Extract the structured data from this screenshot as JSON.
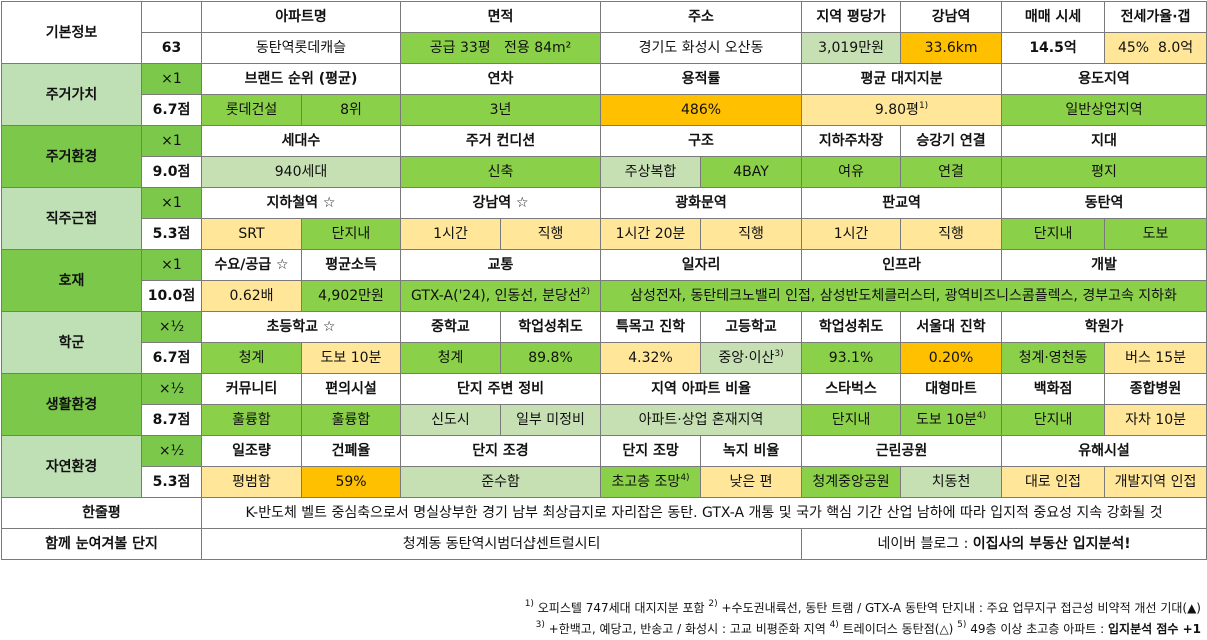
{
  "basic": {
    "label": "기본정보",
    "number": "63",
    "h_name": "아파트명",
    "name": "동탄역롯데캐슬",
    "h_area": "면적",
    "area_supply": "공급 33평",
    "area_exclusive": "전용 84m²",
    "h_addr": "주소",
    "addr": "경기도 화성시 오산동",
    "h_price_py": "지역 평당가",
    "price_py": "3,019만원",
    "h_gangnam": "강남역",
    "gangnam": "33.6km",
    "h_sale": "매매 시세",
    "sale": "14.5억",
    "h_jeonse": "전세가율·갭",
    "jeonse_rate": "45%",
    "jeonse_gap": "8.0억"
  },
  "sections": {
    "s1": {
      "name": "주거가치",
      "mult": "×1",
      "score": "6.7점"
    },
    "s2": {
      "name": "주거환경",
      "mult": "×1",
      "score": "9.0점"
    },
    "s3": {
      "name": "직주근접",
      "mult": "×1",
      "score": "5.3점"
    },
    "s4": {
      "name": "호재",
      "mult": "×1",
      "score": "10.0점"
    },
    "s5": {
      "name": "학군",
      "mult": "×½",
      "score": "6.7점"
    },
    "s6": {
      "name": "생활환경",
      "mult": "×½",
      "score": "8.7점"
    },
    "s7": {
      "name": "자연환경",
      "mult": "×½",
      "score": "5.3점"
    }
  },
  "r1": {
    "h_brand": "브랜드 순위 (평균)",
    "brand": "롯데건설",
    "brand_rank": "8위",
    "h_age": "연차",
    "age": "3년",
    "h_far": "용적률",
    "far": "486%",
    "h_land": "평균 대지지분",
    "land": "9.80평",
    "land_note": "1)",
    "h_zone": "용도지역",
    "zone": "일반상업지역"
  },
  "r2": {
    "h_households": "세대수",
    "households": "940세대",
    "h_condition": "주거 컨디션",
    "condition": "신축",
    "h_structure": "구조",
    "structure_a": "주상복합",
    "structure_b": "4BAY",
    "h_parking": "지하주차장",
    "parking": "여유",
    "h_elevator": "승강기 연결",
    "elevator": "연결",
    "h_terrain": "지대",
    "terrain": "평지"
  },
  "r3": {
    "h_subway": "지하철역 ☆",
    "subway_a": "SRT",
    "subway_b": "단지내",
    "h_gangnam": "강남역 ☆",
    "gangnam_a": "1시간",
    "gangnam_b": "직행",
    "h_gwanghwamun": "광화문역",
    "gwanghwamun_a": "1시간 20분",
    "gwanghwamun_b": "직행",
    "h_pangyo": "판교역",
    "pangyo_a": "1시간",
    "pangyo_b": "직행",
    "h_dongtan": "동탄역",
    "dongtan_a": "단지내",
    "dongtan_b": "도보"
  },
  "r4": {
    "h_supply": "수요/공급 ☆",
    "supply": "0.62배",
    "h_income": "평균소득",
    "income": "4,902만원",
    "h_traffic": "교통",
    "traffic": "GTX-A('24), 인동선, 분당선",
    "traffic_note": "2)",
    "h_jobs": "일자리",
    "h_infra": "인프라",
    "h_dev": "개발",
    "jobs_infra_dev": "삼성전자, 동탄테크노밸리 인접, 삼성반도체클러스터, 광역비즈니스콤플렉스, 경부고속 지하화"
  },
  "r5": {
    "h_elem": "초등학교 ☆",
    "elem_a": "청계",
    "elem_b": "도보 10분",
    "h_middle": "중학교",
    "middle": "청계",
    "h_middle_ach": "학업성취도",
    "middle_ach": "89.8%",
    "h_special": "특목고 진학",
    "special": "4.32%",
    "h_high": "고등학교",
    "high": "중앙·이산",
    "high_note": "3)",
    "h_high_ach": "학업성취도",
    "high_ach": "93.1%",
    "h_snu": "서울대 진학",
    "snu": "0.20%",
    "h_academy": "학원가",
    "academy_a": "청계·영천동",
    "academy_b": "버스 15분"
  },
  "r6": {
    "h_community": "커뮤니티",
    "community": "훌륭함",
    "h_convenience": "편의시설",
    "convenience": "훌륭함",
    "h_surround": "단지 주변 정비",
    "surround_a": "신도시",
    "surround_b": "일부 미정비",
    "h_ratio": "지역 아파트 비율",
    "ratio": "아파트·상업 혼재지역",
    "h_starbucks": "스타벅스",
    "starbucks": "단지내",
    "h_mart": "대형마트",
    "mart": "도보 10분",
    "mart_note": "4)",
    "h_dept": "백화점",
    "dept": "단지내",
    "h_hospital": "종합병원",
    "hospital": "자차 10분"
  },
  "r7": {
    "h_sun": "일조량",
    "sun": "평범함",
    "h_bcr": "건폐율",
    "bcr": "59%",
    "h_landscape": "단지 조경",
    "landscape": "준수함",
    "h_view": "단지 조망",
    "view": "초고층 조망",
    "view_note": "4)",
    "h_green": "녹지 비율",
    "green": "낮은 편",
    "h_park": "근린공원",
    "park_a": "청계중앙공원",
    "park_b": "치동천",
    "h_hazard": "유해시설",
    "hazard_a": "대로 인접",
    "hazard_b": "개발지역 인접"
  },
  "summary": {
    "label": "한줄평",
    "text": "K-반도체 벨트 중심축으로서 명실상부한 경기 남부 최상급지로 자리잡은 동탄. GTX-A 개통 및 국가 핵심 기간 산업 남하에 따라 입지적 중요성 지속 강화될 것"
  },
  "related": {
    "label": "함께 눈여겨볼 단지",
    "text": "청계동 동탄역시범더샵센트럴시티",
    "blog_prefix": "네이버 블로그 : ",
    "blog_name": "이집사의 부동산 입지분석!"
  },
  "notes": {
    "n1_mark": "1)",
    "n1": " 오피스텔 747세대 대지지분 포함 ",
    "n2_mark": "2)",
    "n2": " +수도권내륙선, 동탄 트램 / GTX-A 동탄역 단지내 : 주요 업무지구 접근성 비약적 개선 기대(▲)",
    "n3_mark": "3)",
    "n3": " +한백고, 예당고, 반송고 / 화성시 : 고교 비평준화 지역 ",
    "n4_mark": "4)",
    "n4": " 트레이더스 동탄점(△) ",
    "n5_mark": "5)",
    "n5": " 49층 이상 초고층 아파트 : ",
    "n5_bold": "입지분석 점수 +1"
  },
  "colors": {
    "light_green": "#c6e0b4",
    "green": "#8bd049",
    "light_yellow": "#ffe699",
    "orange": "#ffc000"
  }
}
